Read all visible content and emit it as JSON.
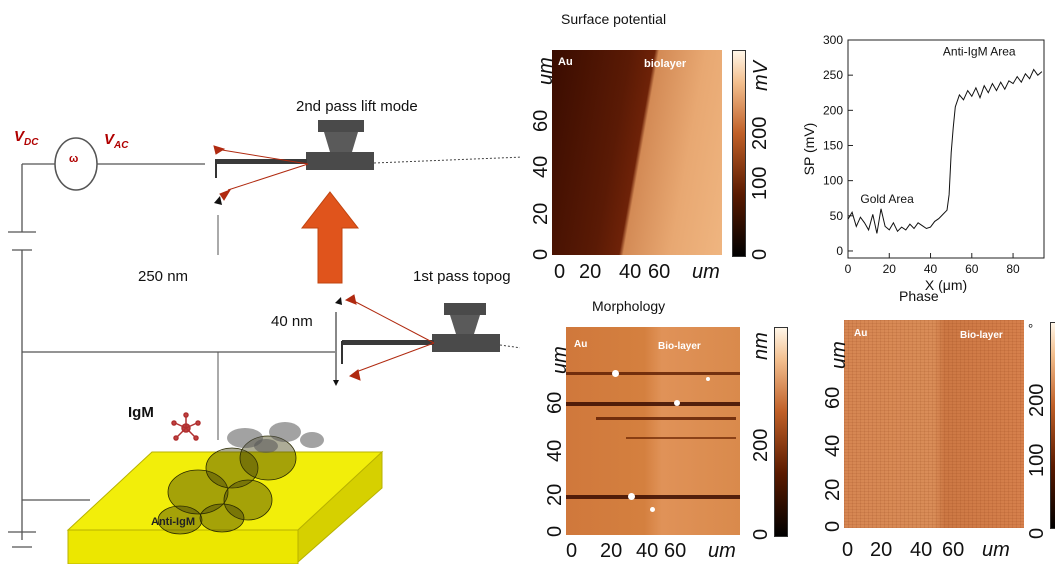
{
  "circuit": {
    "vdc_symbol": "V",
    "vdc_sub": "DC",
    "vac_symbol": "V",
    "vac_sub": "AC",
    "omega": "ω",
    "colors": {
      "label_red": "#b00000",
      "wire": "#555555"
    }
  },
  "labels": {
    "second_pass": "2nd pass lift mode",
    "first_pass": "1st pass topog",
    "lift_height": "250 nm",
    "tip_height": "40 nm",
    "igm": "IgM",
    "anti_igm": "Anti-IgM"
  },
  "colors": {
    "arrow": "#e0541c",
    "arrow_dark": "#c0440f",
    "substrate": "#f2ee0a",
    "substrate_side": "#d6d000",
    "cantilever": "#4a4a4a",
    "laser": "#b02a10"
  },
  "panels": {
    "surface_potential": {
      "title": "Surface potential",
      "left_tag": "Au",
      "right_tag": "biolayer",
      "y_unit": "um",
      "y_ticks": [
        "0",
        "20",
        "40",
        "60"
      ],
      "x_ticks": [
        "0",
        "20",
        "40",
        "60"
      ],
      "x_unit": "um",
      "scale_unit": "mV",
      "scale_ticks": [
        "0",
        "100",
        "200"
      ]
    },
    "morphology": {
      "title": "Morphology",
      "left_tag": "Au",
      "right_tag": "Bio-layer",
      "y_unit": "um",
      "y_ticks": [
        "0",
        "20",
        "40",
        "60"
      ],
      "x_ticks": [
        "0",
        "20",
        "40",
        "60"
      ],
      "x_unit": "um",
      "scale_unit": "nm",
      "scale_ticks": [
        "0",
        "200"
      ]
    },
    "phase": {
      "title": "Phase",
      "left_tag": "Au",
      "right_tag": "Bio-layer",
      "y_unit": "um",
      "y_ticks": [
        "0",
        "20",
        "40",
        "60"
      ],
      "x_ticks": [
        "0",
        "20",
        "40",
        "60"
      ],
      "x_unit": "um",
      "scale_unit": "°",
      "scale_ticks": [
        "0",
        "100",
        "200"
      ]
    }
  },
  "chart_data": {
    "type": "line",
    "xlabel": "X (μm)",
    "ylabel": "SP (mV)",
    "xlim": [
      0,
      95
    ],
    "ylim": [
      -10,
      300
    ],
    "x_ticks": [
      0,
      20,
      40,
      60,
      80
    ],
    "y_ticks": [
      0,
      50,
      100,
      150,
      200,
      250,
      300
    ],
    "annotations": [
      "Gold Area",
      "Anti-IgM Area"
    ],
    "series": [
      {
        "x": [
          0,
          2,
          4,
          6,
          8,
          10,
          12,
          14,
          16,
          18,
          20,
          22,
          24,
          26,
          28,
          30,
          32,
          34,
          36,
          38,
          40,
          42,
          44,
          46,
          48,
          49,
          50,
          51,
          52,
          54,
          56,
          58,
          60,
          62,
          64,
          66,
          68,
          70,
          72,
          74,
          76,
          78,
          80,
          82,
          84,
          86,
          88,
          90,
          92,
          94
        ],
        "values": [
          45,
          55,
          35,
          48,
          40,
          30,
          52,
          25,
          60,
          35,
          30,
          40,
          28,
          34,
          30,
          38,
          32,
          40,
          36,
          32,
          34,
          42,
          46,
          52,
          58,
          80,
          140,
          175,
          205,
          222,
          215,
          228,
          220,
          232,
          218,
          235,
          225,
          238,
          228,
          240,
          230,
          242,
          238,
          248,
          240,
          252,
          245,
          258,
          250,
          255
        ]
      }
    ]
  }
}
